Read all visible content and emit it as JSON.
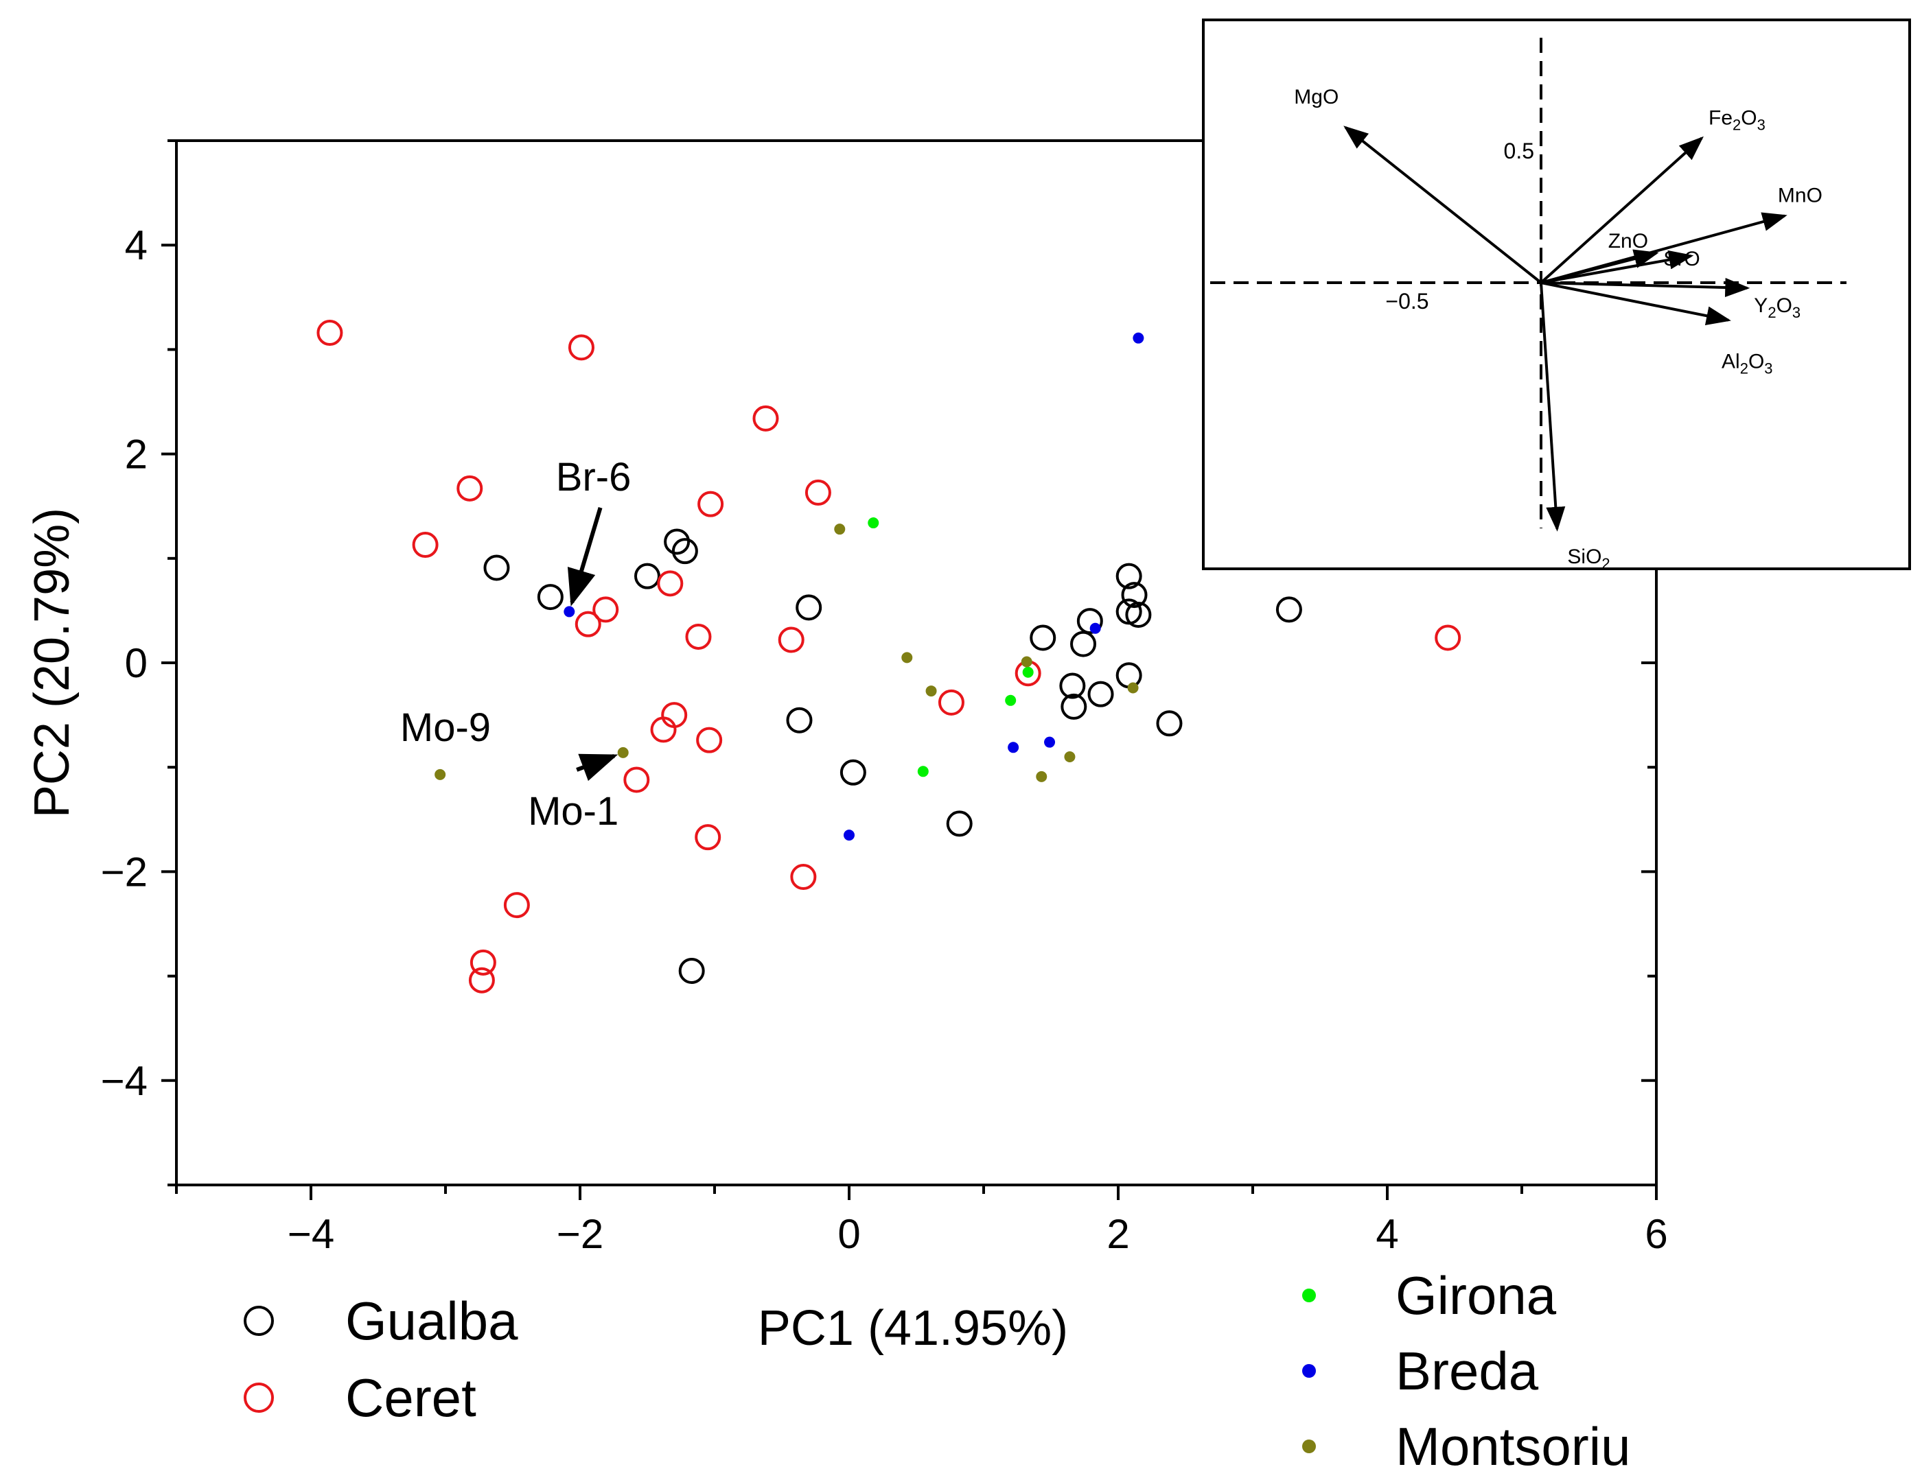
{
  "chart_data": [
    {
      "type": "scatter",
      "xlabel": "PC1 (41.95%)",
      "ylabel": "PC2 (20.79%)",
      "xlim": [
        -5,
        6
      ],
      "ylim": [
        -5,
        5
      ],
      "x_ticks": [
        -4,
        -2,
        0,
        2,
        4,
        6
      ],
      "y_ticks": [
        -4,
        -2,
        0,
        2,
        4
      ],
      "x_tick_labels": [
        "−4",
        "−2",
        "0",
        "2",
        "4",
        "6"
      ],
      "y_tick_labels": [
        "−4",
        "−2",
        "0",
        "2",
        "4"
      ],
      "grid": false,
      "series": [
        {
          "name": "Gualba",
          "marker": "open-circle",
          "color": "#000000",
          "points": [
            [
              -2.62,
              0.91
            ],
            [
              -2.22,
              0.63
            ],
            [
              -1.5,
              0.83
            ],
            [
              -1.28,
              1.16
            ],
            [
              -1.22,
              1.07
            ],
            [
              -0.3,
              0.53
            ],
            [
              -0.37,
              -0.55
            ],
            [
              0.03,
              -1.05
            ],
            [
              0.82,
              -1.54
            ],
            [
              -1.17,
              -2.95
            ],
            [
              1.44,
              0.24
            ],
            [
              1.79,
              0.4
            ],
            [
              1.74,
              0.18
            ],
            [
              2.08,
              0.83
            ],
            [
              2.12,
              0.65
            ],
            [
              2.08,
              0.49
            ],
            [
              2.15,
              0.46
            ],
            [
              2.08,
              -0.12
            ],
            [
              1.66,
              -0.22
            ],
            [
              1.67,
              -0.42
            ],
            [
              1.87,
              -0.3
            ],
            [
              2.38,
              -0.58
            ],
            [
              3.27,
              0.51
            ]
          ]
        },
        {
          "name": "Ceret",
          "marker": "open-circle",
          "color": "#e8161b",
          "points": [
            [
              -3.86,
              3.16
            ],
            [
              -1.99,
              3.02
            ],
            [
              -0.62,
              2.34
            ],
            [
              -2.82,
              1.67
            ],
            [
              -3.15,
              1.13
            ],
            [
              -1.03,
              1.52
            ],
            [
              -0.23,
              1.63
            ],
            [
              -1.81,
              0.51
            ],
            [
              -1.94,
              0.37
            ],
            [
              -1.33,
              0.76
            ],
            [
              -1.12,
              0.25
            ],
            [
              -0.43,
              0.22
            ],
            [
              -1.3,
              -0.5
            ],
            [
              -1.38,
              -0.64
            ],
            [
              -1.04,
              -0.74
            ],
            [
              -1.58,
              -1.12
            ],
            [
              -1.05,
              -1.67
            ],
            [
              -0.34,
              -2.05
            ],
            [
              -2.47,
              -2.32
            ],
            [
              -2.72,
              -2.87
            ],
            [
              -2.73,
              -3.04
            ],
            [
              0.76,
              -0.38
            ],
            [
              1.33,
              -0.1
            ],
            [
              4.45,
              0.24
            ]
          ]
        },
        {
          "name": "Girona",
          "marker": "dot",
          "color": "#00f000",
          "points": [
            [
              0.18,
              1.34
            ],
            [
              1.2,
              -0.36
            ],
            [
              1.33,
              -0.09
            ],
            [
              0.55,
              -1.04
            ]
          ]
        },
        {
          "name": "Breda",
          "marker": "dot",
          "color": "#0000e6",
          "points": [
            [
              -2.08,
              0.49
            ],
            [
              2.15,
              3.11
            ],
            [
              1.83,
              0.33
            ],
            [
              1.22,
              -0.81
            ],
            [
              1.49,
              -0.76
            ],
            [
              0.0,
              -1.65
            ]
          ]
        },
        {
          "name": "Montsoriu",
          "marker": "dot",
          "color": "#7f7f14",
          "points": [
            [
              -0.07,
              1.28
            ],
            [
              0.43,
              0.05
            ],
            [
              0.61,
              -0.27
            ],
            [
              1.32,
              0.01
            ],
            [
              2.11,
              -0.24
            ],
            [
              1.64,
              -0.9
            ],
            [
              1.43,
              -1.09
            ],
            [
              -1.68,
              -0.86
            ],
            [
              -3.04,
              -1.07
            ]
          ]
        }
      ],
      "annotations": [
        {
          "text": "Br-6",
          "point": [
            -2.08,
            0.49
          ],
          "text_pos": [
            -1.9,
            1.65
          ],
          "arrow": true
        },
        {
          "text": "Mo-9",
          "point": [
            -3.04,
            -1.07
          ],
          "text_pos": [
            -3.0,
            -0.75
          ],
          "arrow": false
        },
        {
          "text": "Mo-1",
          "point": [
            -1.68,
            -0.86
          ],
          "text_pos": [
            -2.05,
            -1.55
          ],
          "arrow": true
        }
      ]
    },
    {
      "type": "biplot-loadings",
      "title": "inset",
      "xlim": [
        -1.0,
        1.0
      ],
      "ylim": [
        -0.8,
        0.8
      ],
      "x_tick_text": "−0.5",
      "y_tick_text": "0.5",
      "vectors": [
        {
          "label": "MgO",
          "parts": [
            "MgO"
          ],
          "x": -0.73,
          "y": 0.58
        },
        {
          "label": "Fe2O3",
          "parts": [
            "Fe",
            "2",
            "O",
            "3"
          ],
          "x": 0.6,
          "y": 0.54
        },
        {
          "label": "MnO",
          "parts": [
            "MnO"
          ],
          "x": 0.91,
          "y": 0.25
        },
        {
          "label": "ZnO",
          "parts": [
            "ZnO"
          ],
          "x": 0.43,
          "y": 0.11
        },
        {
          "label": "SrO",
          "parts": [
            "SrO"
          ],
          "x": 0.56,
          "y": 0.1
        },
        {
          "label": "Y2O3",
          "parts": [
            "Y",
            "2",
            "O",
            "3"
          ],
          "x": 0.77,
          "y": -0.02
        },
        {
          "label": "Al2O3",
          "parts": [
            "Al",
            "2",
            "O",
            "3"
          ],
          "x": 0.7,
          "y": -0.14
        },
        {
          "label": "SiO2",
          "parts": [
            "SiO",
            "2"
          ],
          "x": 0.06,
          "y": -0.92
        }
      ]
    }
  ],
  "legend": {
    "open_items": [
      {
        "label": "Gualba",
        "color": "#000000"
      },
      {
        "label": "Ceret",
        "color": "#e8161b"
      }
    ],
    "dot_items": [
      {
        "label": "Girona",
        "color": "#00f000"
      },
      {
        "label": "Breda",
        "color": "#0000e6"
      },
      {
        "label": "Montsoriu",
        "color": "#7f7f14"
      }
    ]
  }
}
